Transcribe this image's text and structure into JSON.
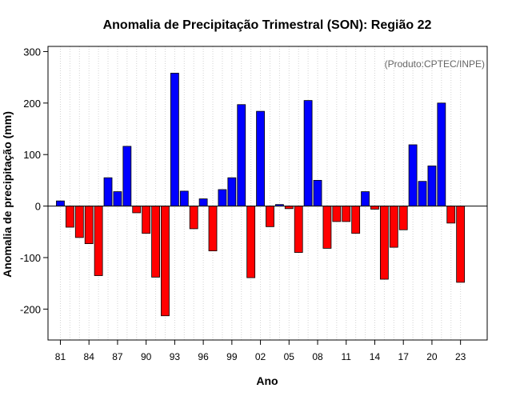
{
  "chart_data": {
    "type": "bar",
    "title": "Anomalia de Precipitação Trimestral (SON): Região 22",
    "xlabel": "Ano",
    "ylabel": "Anomalia de precipitação (mm)",
    "credit": "(Produto:CPTEC/INPE)",
    "ylim": [
      -260,
      310
    ],
    "yticks": [
      -200,
      -100,
      0,
      100,
      200,
      300
    ],
    "xlim": [
      1979.7,
      2025.8
    ],
    "xticks": [
      1981,
      1984,
      1987,
      1990,
      1993,
      1996,
      1999,
      2002,
      2005,
      2008,
      2011,
      2014,
      2017,
      2020,
      2023
    ],
    "xtick_labels": [
      "81",
      "84",
      "87",
      "90",
      "93",
      "96",
      "99",
      "02",
      "05",
      "08",
      "11",
      "14",
      "17",
      "20",
      "23"
    ],
    "grid": true,
    "positive_color": "#0000ff",
    "negative_color": "#ff0000",
    "years": [
      1981,
      1982,
      1983,
      1984,
      1985,
      1986,
      1987,
      1988,
      1989,
      1990,
      1991,
      1992,
      1993,
      1994,
      1995,
      1996,
      1997,
      1998,
      1999,
      2000,
      2001,
      2002,
      2003,
      2004,
      2005,
      2006,
      2007,
      2008,
      2009,
      2010,
      2011,
      2012,
      2013,
      2014,
      2015,
      2016,
      2017,
      2018,
      2019,
      2020,
      2021,
      2022,
      2023
    ],
    "values": [
      10,
      -41,
      -61,
      -73,
      -135,
      55,
      28,
      116,
      -13,
      -53,
      -138,
      -213,
      258,
      29,
      -44,
      14,
      -87,
      32,
      55,
      197,
      -139,
      184,
      -40,
      3,
      -5,
      -90,
      205,
      50,
      -82,
      -30,
      -30,
      -53,
      28,
      -6,
      -142,
      -80,
      -46,
      119,
      48,
      78,
      200,
      -33,
      -148
    ]
  }
}
